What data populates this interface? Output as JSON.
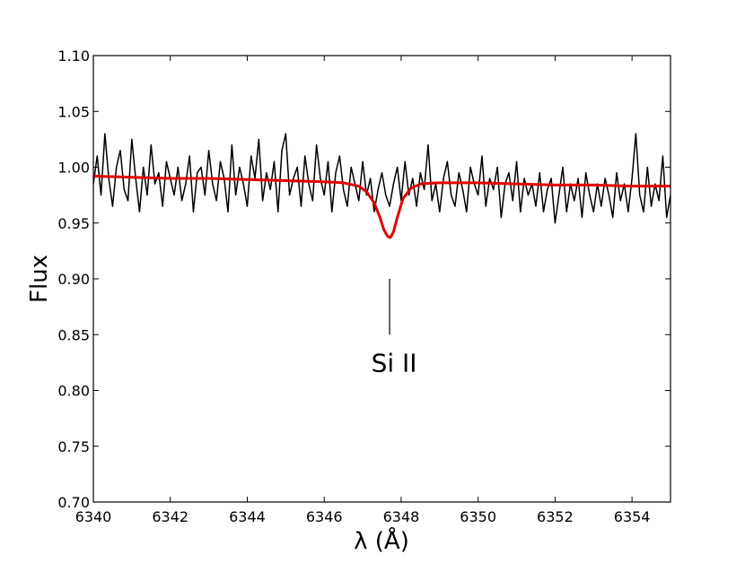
{
  "chart_data": {
    "type": "line",
    "title": "",
    "xlabel": "λ (Å)",
    "ylabel": "Flux",
    "xlim": [
      6340,
      6355
    ],
    "ylim": [
      0.7,
      1.1
    ],
    "x_ticks": [
      6340,
      6342,
      6344,
      6346,
      6348,
      6350,
      6352,
      6354
    ],
    "x_tick_labels": [
      "6340",
      "6342",
      "6344",
      "6346",
      "6348",
      "6350",
      "6352",
      "6354"
    ],
    "y_ticks": [
      0.7,
      0.75,
      0.8,
      0.85,
      0.9,
      0.95,
      1.0,
      1.05,
      1.1
    ],
    "y_tick_labels": [
      "0.70",
      "0.75",
      "0.80",
      "0.85",
      "0.90",
      "0.95",
      "1.00",
      "1.05",
      "1.10"
    ],
    "grid": false,
    "legend": "none",
    "colors": {
      "observed": "#000000",
      "model": "#e00000"
    },
    "series": [
      {
        "x": [
          6340.0,
          6340.1,
          6340.2,
          6340.3,
          6340.4,
          6340.5,
          6340.6,
          6340.7,
          6340.8,
          6340.9,
          6341.0,
          6341.1,
          6341.2,
          6341.3,
          6341.4,
          6341.5,
          6341.6,
          6341.7,
          6341.8,
          6341.9,
          6342.0,
          6342.1,
          6342.2,
          6342.3,
          6342.4,
          6342.5,
          6342.6,
          6342.7,
          6342.8,
          6342.9,
          6343.0,
          6343.1,
          6343.2,
          6343.3,
          6343.4,
          6343.5,
          6343.6,
          6343.7,
          6343.8,
          6343.9,
          6344.0,
          6344.1,
          6344.2,
          6344.3,
          6344.4,
          6344.5,
          6344.6,
          6344.7,
          6344.8,
          6344.9,
          6345.0,
          6345.1,
          6345.2,
          6345.3,
          6345.4,
          6345.5,
          6345.6,
          6345.7,
          6345.8,
          6345.9,
          6346.0,
          6346.1,
          6346.2,
          6346.3,
          6346.4,
          6346.5,
          6346.6,
          6346.7,
          6346.8,
          6346.9,
          6347.0,
          6347.1,
          6347.2,
          6347.3,
          6347.4,
          6347.5,
          6347.6,
          6347.7,
          6347.8,
          6347.9,
          6348.0,
          6348.1,
          6348.2,
          6348.3,
          6348.4,
          6348.5,
          6348.6,
          6348.7,
          6348.8,
          6348.9,
          6349.0,
          6349.1,
          6349.2,
          6349.3,
          6349.4,
          6349.5,
          6349.6,
          6349.7,
          6349.8,
          6349.9,
          6350.0,
          6350.1,
          6350.2,
          6350.3,
          6350.4,
          6350.5,
          6350.6,
          6350.7,
          6350.8,
          6350.9,
          6351.0,
          6351.1,
          6351.2,
          6351.3,
          6351.4,
          6351.5,
          6351.6,
          6351.7,
          6351.8,
          6351.9,
          6352.0,
          6352.1,
          6352.2,
          6352.3,
          6352.4,
          6352.5,
          6352.6,
          6352.7,
          6352.8,
          6352.9,
          6353.0,
          6353.1,
          6353.2,
          6353.3,
          6353.4,
          6353.5,
          6353.6,
          6353.7,
          6353.8,
          6353.9,
          6354.0,
          6354.1,
          6354.2,
          6354.3,
          6354.4,
          6354.5,
          6354.6,
          6354.7,
          6354.8,
          6354.9,
          6355.0
        ],
        "y": [
          0.985,
          1.01,
          0.975,
          1.03,
          0.99,
          0.965,
          1.0,
          1.015,
          0.98,
          0.97,
          1.025,
          0.99,
          0.96,
          1.0,
          0.975,
          1.02,
          0.985,
          0.995,
          0.965,
          1.005,
          0.99,
          0.975,
          1.0,
          0.97,
          0.985,
          1.01,
          0.96,
          0.995,
          1.0,
          0.975,
          1.015,
          0.985,
          0.97,
          1.005,
          0.99,
          0.96,
          1.02,
          0.975,
          1.0,
          0.985,
          0.965,
          1.01,
          0.99,
          1.025,
          0.97,
          0.995,
          0.98,
          1.005,
          0.96,
          1.015,
          1.03,
          0.975,
          0.99,
          1.0,
          0.965,
          1.01,
          0.985,
          0.97,
          1.02,
          0.99,
          0.975,
          1.005,
          0.96,
          0.995,
          1.01,
          0.98,
          0.965,
          1.0,
          0.985,
          0.97,
          1.005,
          0.975,
          0.99,
          0.96,
          0.98,
          0.995,
          0.975,
          0.965,
          0.985,
          1.0,
          0.97,
          1.005,
          0.975,
          0.99,
          0.965,
          0.995,
          0.98,
          1.02,
          0.97,
          0.985,
          0.96,
          0.99,
          1.005,
          0.975,
          0.965,
          0.995,
          0.98,
          0.96,
          1.0,
          0.985,
          0.975,
          1.01,
          0.965,
          0.99,
          0.98,
          1.0,
          0.955,
          0.985,
          0.995,
          0.97,
          1.005,
          0.96,
          0.99,
          0.975,
          0.985,
          0.965,
          0.995,
          0.96,
          0.98,
          0.99,
          0.95,
          0.975,
          1.0,
          0.96,
          0.985,
          0.97,
          0.99,
          0.955,
          0.995,
          0.975,
          0.96,
          0.985,
          0.965,
          0.99,
          0.975,
          0.955,
          0.995,
          0.97,
          0.985,
          0.96,
          0.99,
          1.03,
          0.975,
          0.96,
          1.0,
          0.965,
          0.985,
          0.97,
          1.01,
          0.955,
          0.975
        ]
      },
      {
        "x": [
          6340.0,
          6341.0,
          6342.0,
          6343.0,
          6344.0,
          6345.0,
          6346.0,
          6346.5,
          6346.9,
          6347.1,
          6347.3,
          6347.45,
          6347.55,
          6347.65,
          6347.72,
          6347.8,
          6347.9,
          6348.05,
          6348.25,
          6348.5,
          6349.0,
          6350.0,
          6351.0,
          6352.0,
          6353.0,
          6354.0,
          6355.0
        ],
        "y": [
          0.992,
          0.991,
          0.99,
          0.99,
          0.989,
          0.988,
          0.987,
          0.986,
          0.983,
          0.978,
          0.968,
          0.955,
          0.944,
          0.938,
          0.937,
          0.942,
          0.955,
          0.972,
          0.981,
          0.985,
          0.986,
          0.986,
          0.985,
          0.984,
          0.984,
          0.983,
          0.983
        ]
      }
    ],
    "annotations": [
      {
        "text": "Si II",
        "x": 6347.7,
        "line_y": [
          0.85,
          0.9
        ],
        "text_y": 0.825
      }
    ]
  }
}
